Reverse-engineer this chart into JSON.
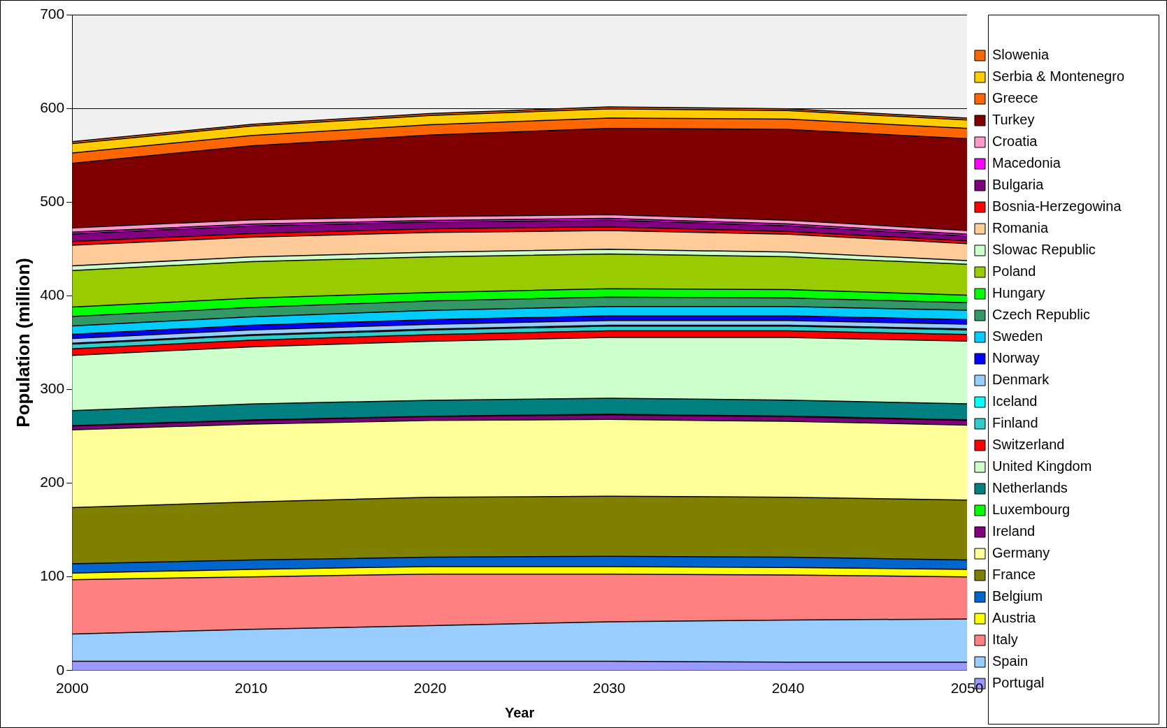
{
  "chart_data": {
    "type": "area",
    "stacked": true,
    "xlabel": "Year",
    "ylabel": "Population (million)",
    "x": [
      2000,
      2010,
      2020,
      2030,
      2040,
      2050
    ],
    "xlim": [
      2000,
      2050
    ],
    "xticks": [
      2000,
      2010,
      2020,
      2030,
      2040,
      2050
    ],
    "ylim": [
      0,
      700
    ],
    "yticks": [
      0,
      100,
      200,
      300,
      400,
      500,
      600,
      700
    ],
    "grid": "y",
    "legend": "right",
    "series": [
      {
        "name": "Portugal",
        "color": "#9999ff",
        "values": [
          10,
          10,
          10,
          10,
          9,
          9
        ]
      },
      {
        "name": "Spain",
        "color": "#99ccff",
        "values": [
          29,
          34,
          38,
          42,
          45,
          46
        ]
      },
      {
        "name": "Italy",
        "color": "#ff8080",
        "values": [
          58,
          56,
          55,
          51,
          48,
          45
        ]
      },
      {
        "name": "Austria",
        "color": "#ffff00",
        "values": [
          7,
          8,
          8,
          8,
          8,
          8
        ]
      },
      {
        "name": "Belgium",
        "color": "#0066cc",
        "values": [
          10,
          10,
          10,
          11,
          11,
          10
        ]
      },
      {
        "name": "France",
        "color": "#808000",
        "values": [
          60,
          62,
          64,
          64,
          64,
          64
        ]
      },
      {
        "name": "Germany",
        "color": "#ffff99",
        "values": [
          83,
          83,
          82,
          82,
          81,
          80
        ]
      },
      {
        "name": "Ireland",
        "color": "#800080",
        "values": [
          4,
          4,
          4,
          5,
          5,
          5
        ]
      },
      {
        "name": "Luxembourg",
        "color": "#00ff00",
        "values": [
          0.4,
          0.5,
          0.5,
          0.6,
          0.6,
          0.6
        ]
      },
      {
        "name": "Netherlands",
        "color": "#008080",
        "values": [
          16,
          17,
          17,
          17,
          17,
          17
        ]
      },
      {
        "name": "United Kingdom",
        "color": "#ccffcc",
        "values": [
          59,
          61,
          63,
          65,
          67,
          67
        ]
      },
      {
        "name": "Switzerland",
        "color": "#ff0000",
        "values": [
          7,
          7,
          7,
          7,
          7,
          7
        ]
      },
      {
        "name": "Finland",
        "color": "#33cccc",
        "values": [
          5,
          5,
          5,
          5,
          5,
          5
        ]
      },
      {
        "name": "Iceland",
        "color": "#00ffff",
        "values": [
          1,
          1,
          1,
          1,
          1,
          1
        ]
      },
      {
        "name": "Denmark",
        "color": "#99ccff",
        "values": [
          5,
          5,
          5,
          5,
          5,
          5
        ]
      },
      {
        "name": "Norway",
        "color": "#0000ff",
        "values": [
          4.5,
          5,
          5,
          5,
          5,
          5
        ]
      },
      {
        "name": "Sweden",
        "color": "#00ccff",
        "values": [
          9,
          9,
          10,
          10,
          10,
          10
        ]
      },
      {
        "name": "Czech Republic",
        "color": "#339966",
        "values": [
          10,
          10,
          10,
          10,
          9,
          8
        ]
      },
      {
        "name": "Hungary",
        "color": "#00ff00",
        "values": [
          10,
          10,
          9,
          9,
          9,
          8
        ]
      },
      {
        "name": "Poland",
        "color": "#99cc00",
        "values": [
          39,
          39,
          38,
          37,
          35,
          33
        ]
      },
      {
        "name": "Slowac Republic",
        "color": "#ccffcc",
        "values": [
          5,
          5,
          5,
          5,
          5,
          4
        ]
      },
      {
        "name": "Romania",
        "color": "#ffcc99",
        "values": [
          22,
          21,
          21,
          20,
          19,
          18
        ]
      },
      {
        "name": "Bosnia-Herzegowina",
        "color": "#ff0000",
        "values": [
          4,
          4,
          4,
          4,
          3,
          3
        ]
      },
      {
        "name": "Bulgaria",
        "color": "#800080",
        "values": [
          8,
          8,
          7,
          7,
          6,
          5
        ]
      },
      {
        "name": "Macedonia",
        "color": "#ff00ff",
        "values": [
          2,
          2,
          2,
          2,
          2,
          2
        ]
      },
      {
        "name": "Croatia",
        "color": "#ff99cc",
        "values": [
          4.5,
          4.5,
          4,
          4,
          4,
          4
        ]
      },
      {
        "name": "Turkey",
        "color": "#800000",
        "values": [
          69,
          79,
          87,
          92,
          97,
          98
        ]
      },
      {
        "name": "Greece",
        "color": "#ff6600",
        "values": [
          11,
          11,
          11,
          11,
          11,
          11
        ]
      },
      {
        "name": "Serbia & Montenegro",
        "color": "#ffcc00",
        "values": [
          10,
          10,
          10,
          10,
          9,
          9
        ]
      },
      {
        "name": "Slowenia",
        "color": "#ff6600",
        "values": [
          2,
          2,
          2,
          2,
          2,
          2
        ]
      }
    ]
  }
}
